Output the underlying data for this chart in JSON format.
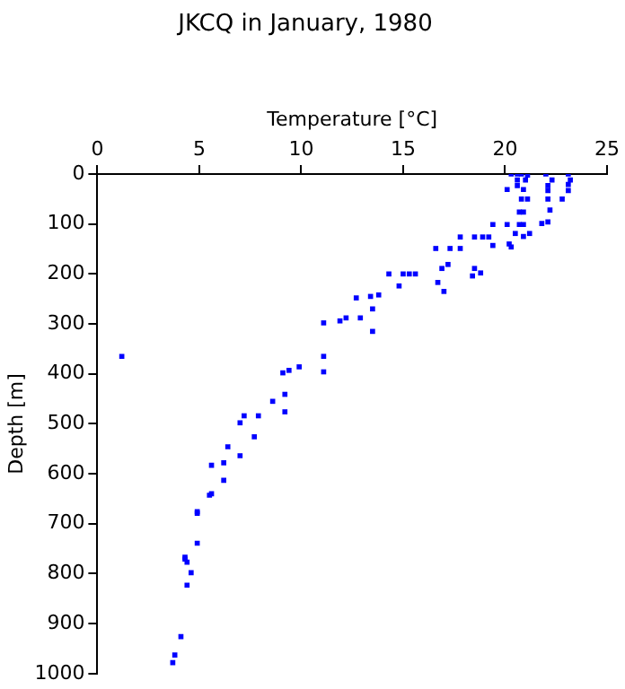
{
  "chart_data": {
    "type": "scatter",
    "title": "JKCQ in January, 1980",
    "xlabel": "Temperature [°C]",
    "ylabel": "Depth [m]",
    "xlim": [
      0,
      25
    ],
    "xticks": [
      0,
      5,
      10,
      15,
      20,
      25
    ],
    "ylim": [
      1000,
      0
    ],
    "yticks": [
      0,
      100,
      200,
      300,
      400,
      500,
      600,
      700,
      800,
      900,
      1000
    ],
    "grid": false,
    "legend": false,
    "marker": "square",
    "series": [
      {
        "color": "#0000ff",
        "x": [
          20.3,
          20.6,
          20.8,
          21.1,
          22.0,
          23.1,
          20.6,
          21.0,
          22.3,
          23.2,
          20.1,
          20.6,
          20.9,
          22.1,
          23.1,
          23.1,
          22.1,
          20.8,
          21.1,
          22.1,
          22.8,
          20.7,
          20.9,
          22.2,
          20.1,
          19.4,
          20.7,
          20.9,
          21.8,
          22.1,
          20.5,
          21.2,
          20.9,
          17.8,
          18.5,
          18.9,
          19.2,
          16.6,
          17.3,
          17.8,
          19.4,
          20.2,
          20.3,
          17.2,
          16.9,
          18.5,
          18.4,
          18.8,
          14.3,
          15.0,
          15.3,
          15.6,
          14.8,
          16.7,
          17.0,
          12.7,
          13.4,
          13.8,
          13.5,
          11.1,
          11.9,
          12.2,
          12.9,
          13.5,
          1.2,
          11.1,
          11.1,
          9.1,
          9.4,
          9.9,
          9.2,
          8.6,
          9.2,
          7.0,
          7.2,
          7.9,
          7.7,
          7.0,
          6.4,
          6.2,
          5.6,
          6.2,
          5.6,
          5.5,
          4.9,
          4.9,
          4.9,
          4.3,
          4.3,
          4.4,
          4.6,
          4.4,
          4.1,
          3.8,
          3.7
        ],
        "values": [
          0,
          0,
          0,
          2,
          0,
          0,
          12,
          12,
          12,
          12,
          31,
          23,
          31,
          23,
          21,
          33,
          33,
          50,
          50,
          50,
          50,
          76,
          76,
          72,
          101,
          101,
          101,
          101,
          99,
          96,
          119,
          119,
          125,
          126,
          126,
          126,
          126,
          149,
          149,
          149,
          143,
          140,
          146,
          181,
          189,
          189,
          204,
          198,
          200,
          200,
          200,
          200,
          224,
          217,
          235,
          248,
          245,
          242,
          270,
          298,
          294,
          288,
          288,
          315,
          365,
          365,
          396,
          398,
          393,
          386,
          441,
          455,
          476,
          498,
          484,
          484,
          526,
          564,
          546,
          578,
          583,
          613,
          640,
          643,
          679,
          676,
          739,
          767,
          771,
          777,
          798,
          823,
          926,
          963,
          978
        ]
      }
    ]
  }
}
